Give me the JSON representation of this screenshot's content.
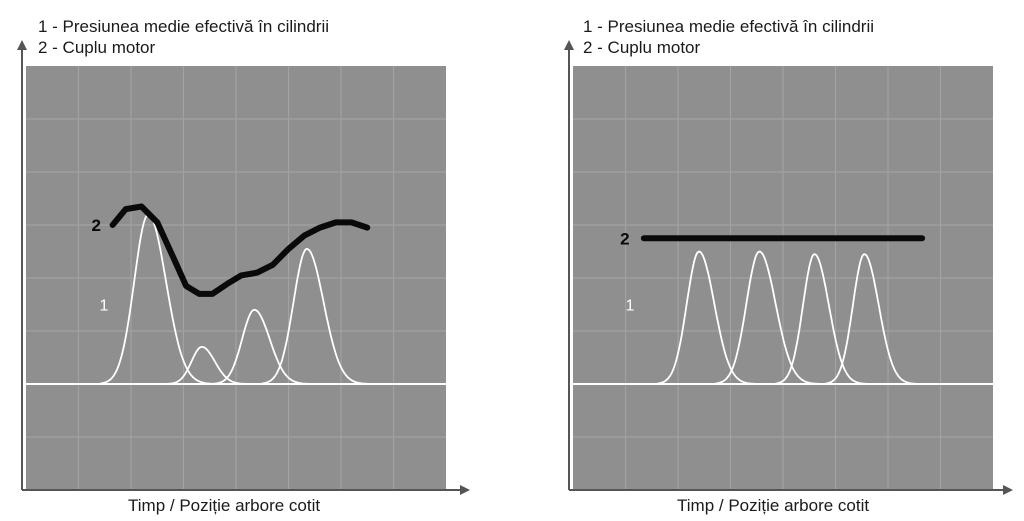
{
  "colors": {
    "plot_bg": "#8f8f8f",
    "grid": "#a2a2a2",
    "pressure": "#ffffff",
    "torque": "#0a0a0a",
    "axis": "#555555"
  },
  "chart_data": [
    {
      "type": "line",
      "legend": [
        "1 - Presiunea medie efectivă în cilindrii",
        "2 - Cuplu motor"
      ],
      "xlabel": "Timp / Poziție arbore cotit",
      "ylabel": "",
      "grid": true,
      "xlim": [
        0,
        8
      ],
      "ylim": [
        0,
        8
      ],
      "series": [
        {
          "name": "1",
          "kind": "pressure-pulses",
          "pulses": [
            {
              "center": 2.33,
              "peak": 5.2,
              "width": 0.38
            },
            {
              "center": 3.35,
              "peak": 2.7,
              "width": 0.28
            },
            {
              "center": 4.35,
              "peak": 3.4,
              "width": 0.33
            },
            {
              "center": 5.35,
              "peak": 4.55,
              "width": 0.36
            }
          ],
          "baseline": 2.0,
          "label_pos": [
            1.4,
            3.5
          ]
        },
        {
          "name": "2",
          "kind": "torque",
          "x": [
            1.65,
            1.9,
            2.2,
            2.5,
            2.8,
            3.05,
            3.3,
            3.55,
            3.85,
            4.1,
            4.4,
            4.7,
            5.0,
            5.3,
            5.6,
            5.9,
            6.2,
            6.5
          ],
          "y": [
            5.0,
            5.3,
            5.35,
            5.05,
            4.4,
            3.85,
            3.7,
            3.7,
            3.9,
            4.05,
            4.1,
            4.25,
            4.55,
            4.8,
            4.95,
            5.05,
            5.05,
            4.95
          ],
          "label_pos": [
            1.4,
            5.0
          ]
        }
      ]
    },
    {
      "type": "line",
      "legend": [
        "1 - Presiunea medie efectivă în cilindrii",
        "2 - Cuplu motor"
      ],
      "xlabel": "Timp / Poziție arbore cotit",
      "ylabel": "",
      "grid": true,
      "xlim": [
        0,
        8
      ],
      "ylim": [
        0,
        8
      ],
      "series": [
        {
          "name": "1",
          "kind": "pressure-pulses",
          "pulses": [
            {
              "center": 2.4,
              "peak": 4.5,
              "width": 0.33
            },
            {
              "center": 3.55,
              "peak": 4.5,
              "width": 0.35
            },
            {
              "center": 4.6,
              "peak": 4.45,
              "width": 0.31
            },
            {
              "center": 5.55,
              "peak": 4.45,
              "width": 0.31
            }
          ],
          "baseline": 2.0,
          "label_pos": [
            1.0,
            3.5
          ]
        },
        {
          "name": "2",
          "kind": "torque",
          "x": [
            1.35,
            6.65
          ],
          "y": [
            4.75,
            4.75
          ],
          "label_pos": [
            1.05,
            4.75
          ]
        }
      ]
    }
  ]
}
